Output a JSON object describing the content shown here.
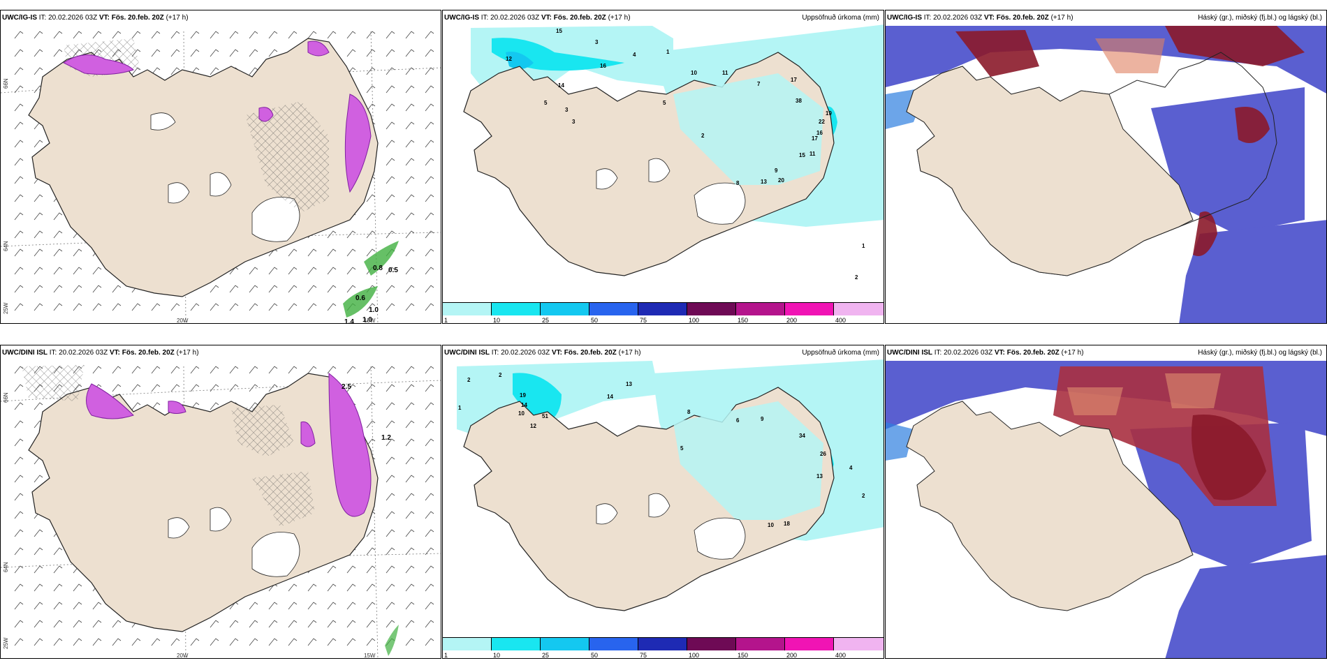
{
  "rows": [
    {
      "model": "UWC/IG-IS",
      "it_label": "IT:",
      "it_value": "20.02.2026 03Z",
      "vt_label": "VT:",
      "vt_value": "Fös. 20.feb. 20Z",
      "lead": "(+17 h)"
    },
    {
      "model": "UWC/DINI ISL",
      "it_label": "IT:",
      "it_value": "20.02.2026 03Z",
      "vt_label": "VT:",
      "vt_value": "Fös. 20.feb. 20Z",
      "lead": "(+17 h)"
    }
  ],
  "titles": {
    "precip": "Uppsöfnuð úrkoma (mm)",
    "clouds": "Háský (gr.), miðský (fj.bl.) og lágský (bl.)"
  },
  "axis": {
    "lon_20w": "20W",
    "lon_15w": "15W",
    "lon_25w": "25W",
    "lat_66n": "66N",
    "lat_64n": "64N"
  },
  "legend": {
    "labels": [
      "1",
      "10",
      "25",
      "50",
      "75",
      "100",
      "150",
      "200",
      "400"
    ],
    "colors": [
      "#b4f5f5",
      "#19e6f0",
      "#14c8f0",
      "#2864ee",
      "#1e2ab4",
      "#6e0a55",
      "#b4148c",
      "#f014b4",
      "#f0b4f0"
    ]
  },
  "wind_labels_top": [
    "0.8",
    "0.5",
    "0.6",
    "1.0",
    "1.0",
    "1.4"
  ],
  "wind_labels_bottom": [
    "2.5",
    "1.2"
  ],
  "precip_values_top": [
    "15",
    "3",
    "4",
    "1",
    "16",
    "12",
    "14",
    "5",
    "3",
    "3",
    "10",
    "11",
    "5",
    "7",
    "17",
    "38",
    "19",
    "22",
    "16",
    "17",
    "15",
    "11",
    "8",
    "9",
    "13",
    "20",
    "2",
    "1",
    "2"
  ],
  "precip_values_bottom": [
    "2",
    "2",
    "1",
    "19",
    "14",
    "10",
    "12",
    "51",
    "13",
    "14",
    "8",
    "9",
    "5",
    "6",
    "34",
    "26",
    "13",
    "10",
    "18",
    "4",
    "2"
  ],
  "colors": {
    "land": "#ede0d0",
    "coast": "#222222",
    "precip_light": "#b4f5f5",
    "precip_mid": "#19e6f0",
    "cloud_high": "#8b1a2a",
    "cloud_mid": "#5a5fd0",
    "cloud_low": "#2e7fe0",
    "snow_pink": "#d060e0",
    "rain_green": "#40b040"
  }
}
